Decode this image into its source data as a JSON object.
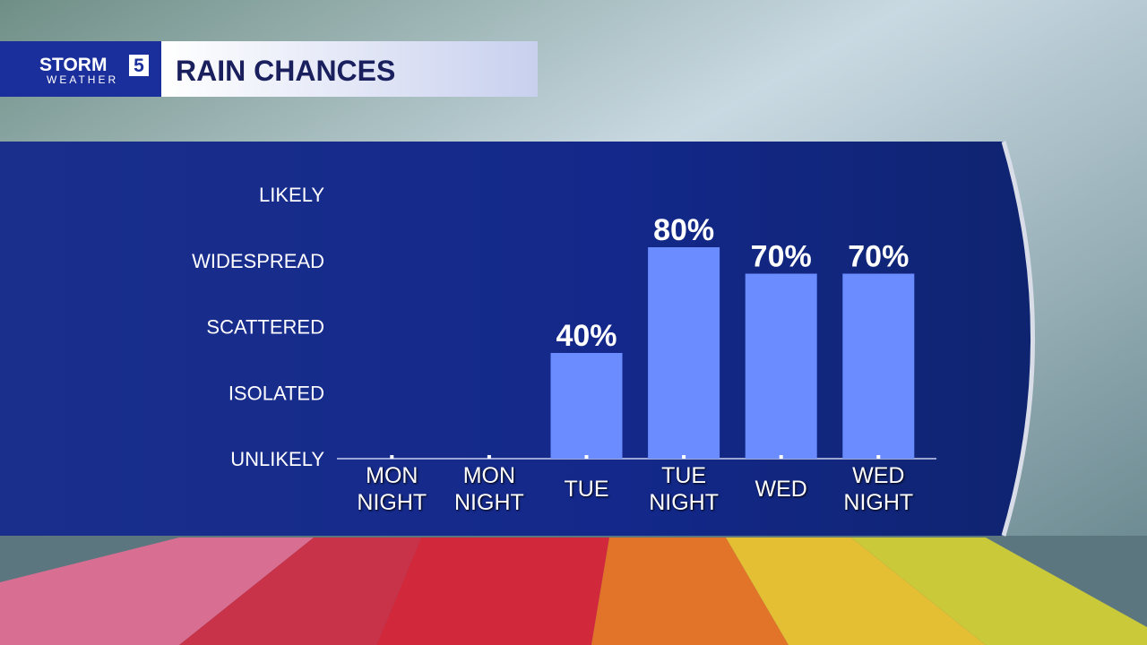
{
  "logo": {
    "brand": "STORM",
    "number": "5",
    "sub": "WEATHER"
  },
  "chart_data": {
    "type": "bar",
    "title": "RAIN CHANCES",
    "categories": [
      "MON NIGHT",
      "MON NIGHT",
      "TUE",
      "TUE NIGHT",
      "WED",
      "WED NIGHT"
    ],
    "values": [
      0,
      0,
      40,
      80,
      70,
      70
    ],
    "value_labels": [
      null,
      null,
      "40%",
      "80%",
      "70%",
      "70%"
    ],
    "color": "#6a8cff",
    "ylim": [
      0,
      100
    ],
    "yticks": [
      {
        "value": 0,
        "label": "UNLIKELY"
      },
      {
        "value": 25,
        "label": "ISOLATED"
      },
      {
        "value": 50,
        "label": "SCATTERED"
      },
      {
        "value": 75,
        "label": "WIDESPREAD"
      },
      {
        "value": 100,
        "label": "LIKELY"
      }
    ]
  }
}
